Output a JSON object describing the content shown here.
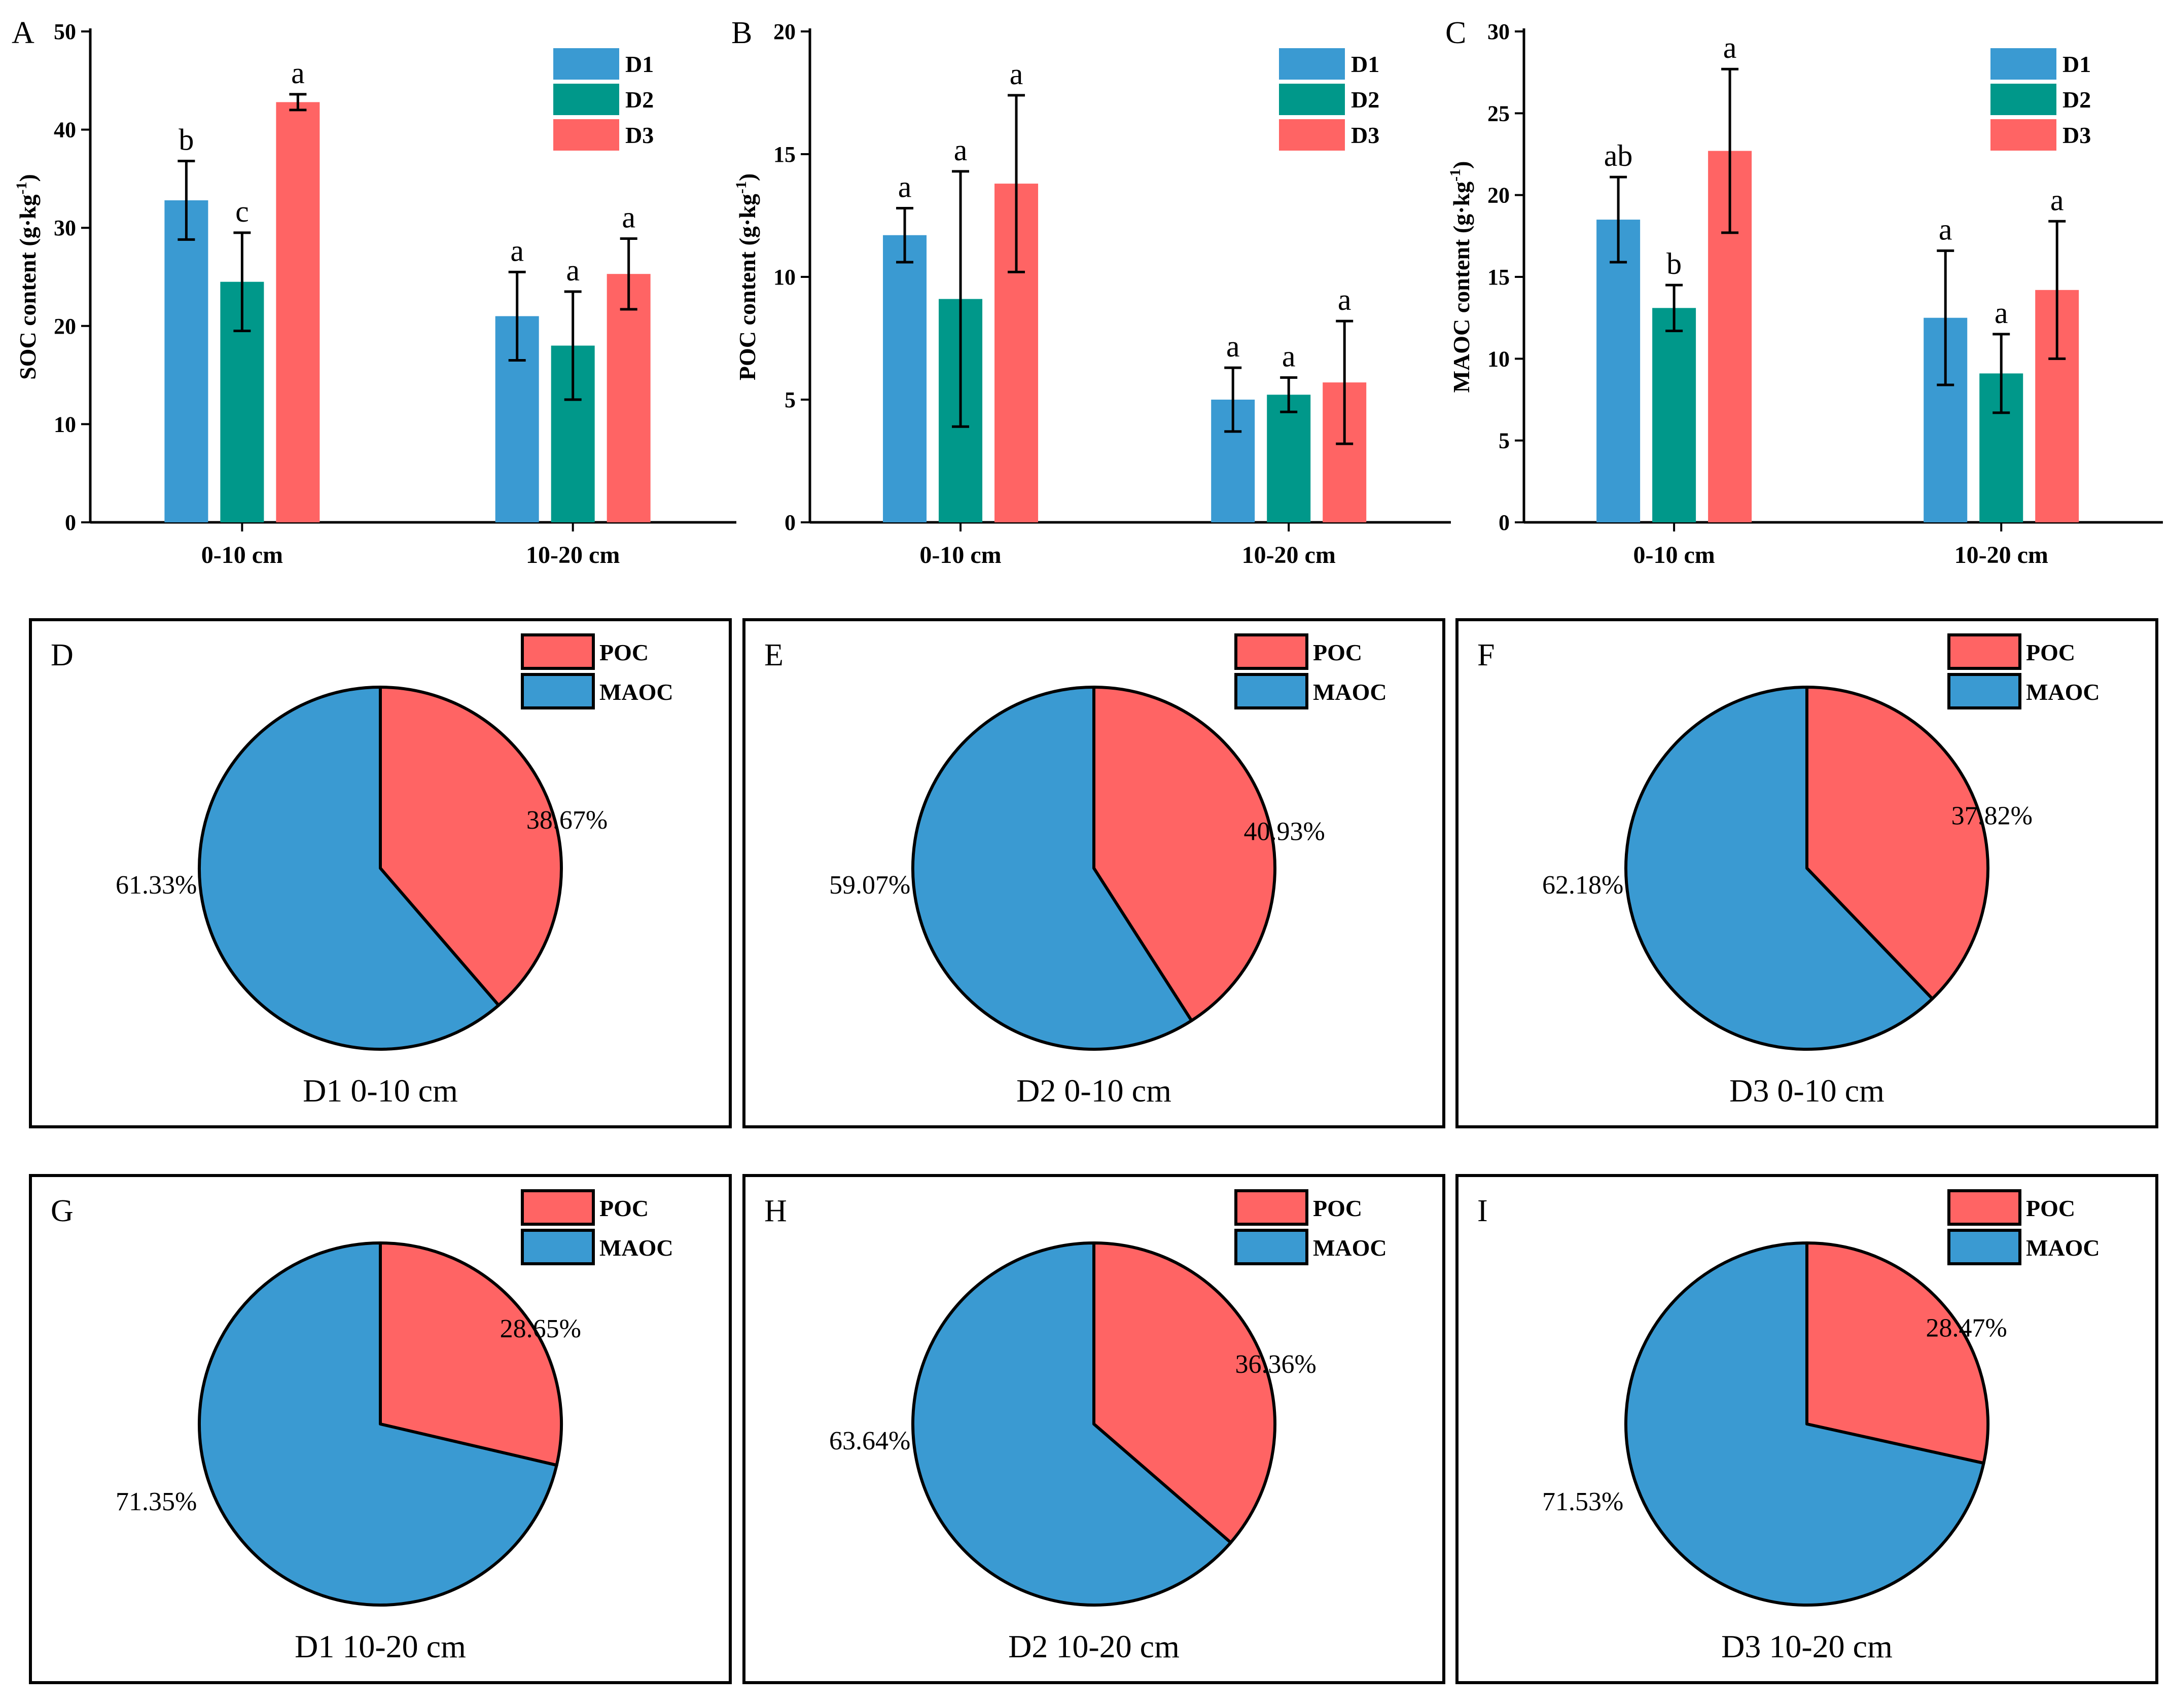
{
  "colors": {
    "D1": "#3a9ad2",
    "D2": "#00988a",
    "D3": "#ff6464",
    "POC": "#ff6464",
    "MAOC": "#3a9ad2"
  },
  "chart_data": [
    {
      "type": "bar",
      "panel": "A",
      "ylabel_main": "SOC content (g·kg",
      "ylabel_sup": "-1",
      "ylabel_close": ")",
      "ylim": [
        0,
        50
      ],
      "yticks": [
        "0",
        "10",
        "20",
        "30",
        "40",
        "50"
      ],
      "categories": [
        "0-10 cm",
        "10-20 cm"
      ],
      "series": [
        {
          "name": "D1",
          "values": [
            32.8,
            21.0
          ],
          "errors": [
            4.0,
            4.5
          ],
          "letters": [
            "b",
            "a"
          ]
        },
        {
          "name": "D2",
          "values": [
            24.5,
            18.0
          ],
          "errors": [
            5.0,
            5.5
          ],
          "letters": [
            "c",
            "a"
          ]
        },
        {
          "name": "D3",
          "values": [
            42.8,
            25.3
          ],
          "errors": [
            0.8,
            3.6
          ],
          "letters": [
            "a",
            "a"
          ]
        }
      ],
      "legend": [
        "D1",
        "D2",
        "D3"
      ]
    },
    {
      "type": "bar",
      "panel": "B",
      "ylabel_main": "POC content (g·kg",
      "ylabel_sup": "-1",
      "ylabel_close": ")",
      "ylim": [
        0,
        20
      ],
      "yticks": [
        "0",
        "5",
        "10",
        "15",
        "20"
      ],
      "categories": [
        "0-10 cm",
        "10-20 cm"
      ],
      "series": [
        {
          "name": "D1",
          "values": [
            11.7,
            5.0
          ],
          "errors": [
            1.1,
            1.3
          ],
          "letters": [
            "a",
            "a"
          ]
        },
        {
          "name": "D2",
          "values": [
            9.1,
            5.2
          ],
          "errors": [
            5.2,
            0.7
          ],
          "letters": [
            "a",
            "a"
          ]
        },
        {
          "name": "D3",
          "values": [
            13.8,
            5.7
          ],
          "errors": [
            3.6,
            2.5
          ],
          "letters": [
            "a",
            "a"
          ]
        }
      ],
      "legend": [
        "D1",
        "D2",
        "D3"
      ]
    },
    {
      "type": "bar",
      "panel": "C",
      "ylabel_main": "MAOC content (g·kg",
      "ylabel_sup": "-1",
      "ylabel_close": ")",
      "ylim": [
        0,
        30
      ],
      "yticks": [
        "0",
        "5",
        "10",
        "15",
        "20",
        "25",
        "30"
      ],
      "categories": [
        "0-10 cm",
        "10-20 cm"
      ],
      "series": [
        {
          "name": "D1",
          "values": [
            18.5,
            12.5
          ],
          "errors": [
            2.6,
            4.1
          ],
          "letters": [
            "ab",
            "a"
          ]
        },
        {
          "name": "D2",
          "values": [
            13.1,
            9.1
          ],
          "errors": [
            1.4,
            2.4
          ],
          "letters": [
            "b",
            "a"
          ]
        },
        {
          "name": "D3",
          "values": [
            22.7,
            14.2
          ],
          "errors": [
            5.0,
            4.2
          ],
          "letters": [
            "a",
            "a"
          ]
        }
      ],
      "legend": [
        "D1",
        "D2",
        "D3"
      ]
    },
    {
      "type": "pie",
      "panel": "D",
      "caption": "D1 0-10 cm",
      "labels": [
        "POC",
        "MAOC"
      ],
      "values": [
        38.67,
        61.33
      ],
      "pct_labels": [
        "38.67%",
        "61.33%"
      ]
    },
    {
      "type": "pie",
      "panel": "E",
      "caption": "D2 0-10 cm",
      "labels": [
        "POC",
        "MAOC"
      ],
      "values": [
        40.93,
        59.07
      ],
      "pct_labels": [
        "40.93%",
        "59.07%"
      ]
    },
    {
      "type": "pie",
      "panel": "F",
      "caption": "D3 0-10 cm",
      "labels": [
        "POC",
        "MAOC"
      ],
      "values": [
        37.82,
        62.18
      ],
      "pct_labels": [
        "37.82%",
        "62.18%"
      ]
    },
    {
      "type": "pie",
      "panel": "G",
      "caption": "D1 10-20 cm",
      "labels": [
        "POC",
        "MAOC"
      ],
      "values": [
        28.65,
        71.35
      ],
      "pct_labels": [
        "28.65%",
        "71.35%"
      ]
    },
    {
      "type": "pie",
      "panel": "H",
      "caption": "D2 10-20 cm",
      "labels": [
        "POC",
        "MAOC"
      ],
      "values": [
        36.36,
        63.64
      ],
      "pct_labels": [
        "36.36%",
        "63.64%"
      ]
    },
    {
      "type": "pie",
      "panel": "I",
      "caption": "D3 10-20 cm",
      "labels": [
        "POC",
        "MAOC"
      ],
      "values": [
        28.47,
        71.53
      ],
      "pct_labels": [
        "28.47%",
        "71.53%"
      ]
    }
  ]
}
